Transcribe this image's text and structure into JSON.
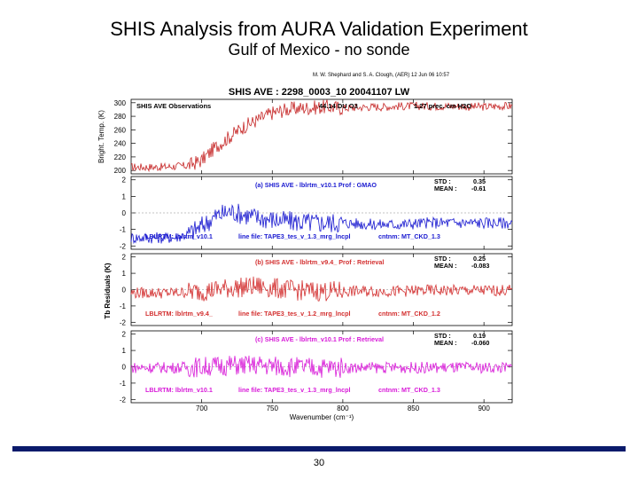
{
  "slide": {
    "title": "SHIS Analysis from AURA Validation Experiment",
    "subtitle": "Gulf of Mexico - no sonde",
    "page_number": "30",
    "footer_color": "#0a1a6b"
  },
  "chart_data": {
    "type": "line",
    "credit": "M. W. Shephard and S. A. Clough, (AER)  12 Jun 06 10:57",
    "title": "SHIS AVE : 2298_0003_10  20041107  LW",
    "xlabel": "Wavenumber (cm⁻¹)",
    "xlim": [
      650,
      920
    ],
    "xticks": [
      700,
      750,
      800,
      850,
      900
    ],
    "shared_ylabel": "Tb Residuals (K)",
    "panels": [
      {
        "id": "observations",
        "ylabel": "Bright. Temp. (K)",
        "ylim": [
          195,
          305
        ],
        "yticks": [
          200,
          220,
          240,
          260,
          280,
          300
        ],
        "color": "#c62828",
        "labels": [
          "SHIS AVE Observations",
          "44.14 DU O3",
          "1.27 prec. cm H2O"
        ],
        "series": [
          {
            "x": [
              650,
              670,
              690,
              700,
              710,
              720,
              730,
              740,
              750,
              760,
              770,
              780,
              790,
              800,
              810,
              820,
              830,
              840,
              850,
              860,
              870,
              880,
              890,
              900,
              910,
              920
            ],
            "values": [
              205,
              205,
              207,
              215,
              235,
              250,
              265,
              275,
              285,
              290,
              292,
              293,
              294,
              292,
              293,
              294,
              294,
              295,
              295,
              295,
              295,
              295,
              294,
              294,
              295,
              295
            ]
          }
        ]
      },
      {
        "id": "a",
        "ylim": [
          -2.2,
          2.2
        ],
        "yticks": [
          -2,
          -1,
          0,
          1,
          2
        ],
        "color": "#1a1ad0",
        "label_color": "#1a1ad0",
        "case_label": "(a) SHIS AVE - lblrtm_v10.1     Prof : GMAO",
        "std_label": "STD    :",
        "std_value": "0.35",
        "mean_label": "MEAN :",
        "mean_value": "-0.61",
        "lblrtm_label": "LBLRTM:  lblrtm_v10.1",
        "linefile_label": "line file: TAPE3_tes_v_1.3_mrg_lncpl",
        "cntnm_label": "cntnm: MT_CKD_1.3",
        "series": [
          {
            "x": [
              650,
              680,
              690,
              700,
              710,
              720,
              740,
              760,
              780,
              800,
              820,
              840,
              860,
              880,
              900,
              920
            ],
            "values": [
              -1.5,
              -1.5,
              -1.3,
              -0.8,
              -0.2,
              0.1,
              -0.3,
              -0.5,
              -0.6,
              -0.6,
              -0.7,
              -0.7,
              -0.6,
              -0.6,
              -0.6,
              -0.6
            ]
          }
        ]
      },
      {
        "id": "b",
        "ylim": [
          -2.2,
          2.2
        ],
        "yticks": [
          -2,
          -1,
          0,
          1,
          2
        ],
        "color": "#d32f2f",
        "label_color": "#d32f2f",
        "case_label": "(b) SHIS AVE - lblrtm_v9.4_     Prof : Retrieval",
        "std_label": "STD    :",
        "std_value": "0.25",
        "mean_label": "MEAN :",
        "mean_value": "-0.083",
        "lblrtm_label": "LBLRTM:  lblrtm_v9.4_",
        "linefile_label": "line file: TAPE3_tes_v_1.2_mrg_lncpl",
        "cntnm_label": "cntnm: MT_CKD_1.2",
        "series": [
          {
            "x": [
              650,
              680,
              700,
              720,
              740,
              760,
              780,
              800,
              820,
              840,
              860,
              880,
              900,
              920
            ],
            "values": [
              -0.2,
              -0.2,
              -0.1,
              0.1,
              0.2,
              0.0,
              -0.1,
              -0.1,
              -0.1,
              -0.1,
              -0.05,
              -0.05,
              -0.05,
              -0.05
            ]
          }
        ]
      },
      {
        "id": "c",
        "ylim": [
          -2.2,
          2.2
        ],
        "yticks": [
          -2,
          -1,
          0,
          1,
          2
        ],
        "color": "#d81bd8",
        "label_color": "#d81bd8",
        "case_label": "(c) SHIS AVE - lblrtm_v10.1     Prof : Retrieval",
        "std_label": "STD    :",
        "std_value": "0.19",
        "mean_label": "MEAN :",
        "mean_value": "-0.060",
        "lblrtm_label": "LBLRTM:  lblrtm_v10.1",
        "linefile_label": "line file: TAPE3_tes_v_1.3_mrg_lncpl",
        "cntnm_label": "cntnm: MT_CKD_1.3",
        "series": [
          {
            "x": [
              650,
              680,
              700,
              720,
              740,
              760,
              780,
              800,
              820,
              840,
              860,
              880,
              900,
              920
            ],
            "values": [
              -0.05,
              -0.05,
              0.0,
              0.1,
              0.1,
              0.0,
              -0.05,
              -0.05,
              -0.05,
              -0.05,
              -0.05,
              -0.05,
              -0.05,
              -0.05
            ]
          }
        ]
      }
    ]
  }
}
